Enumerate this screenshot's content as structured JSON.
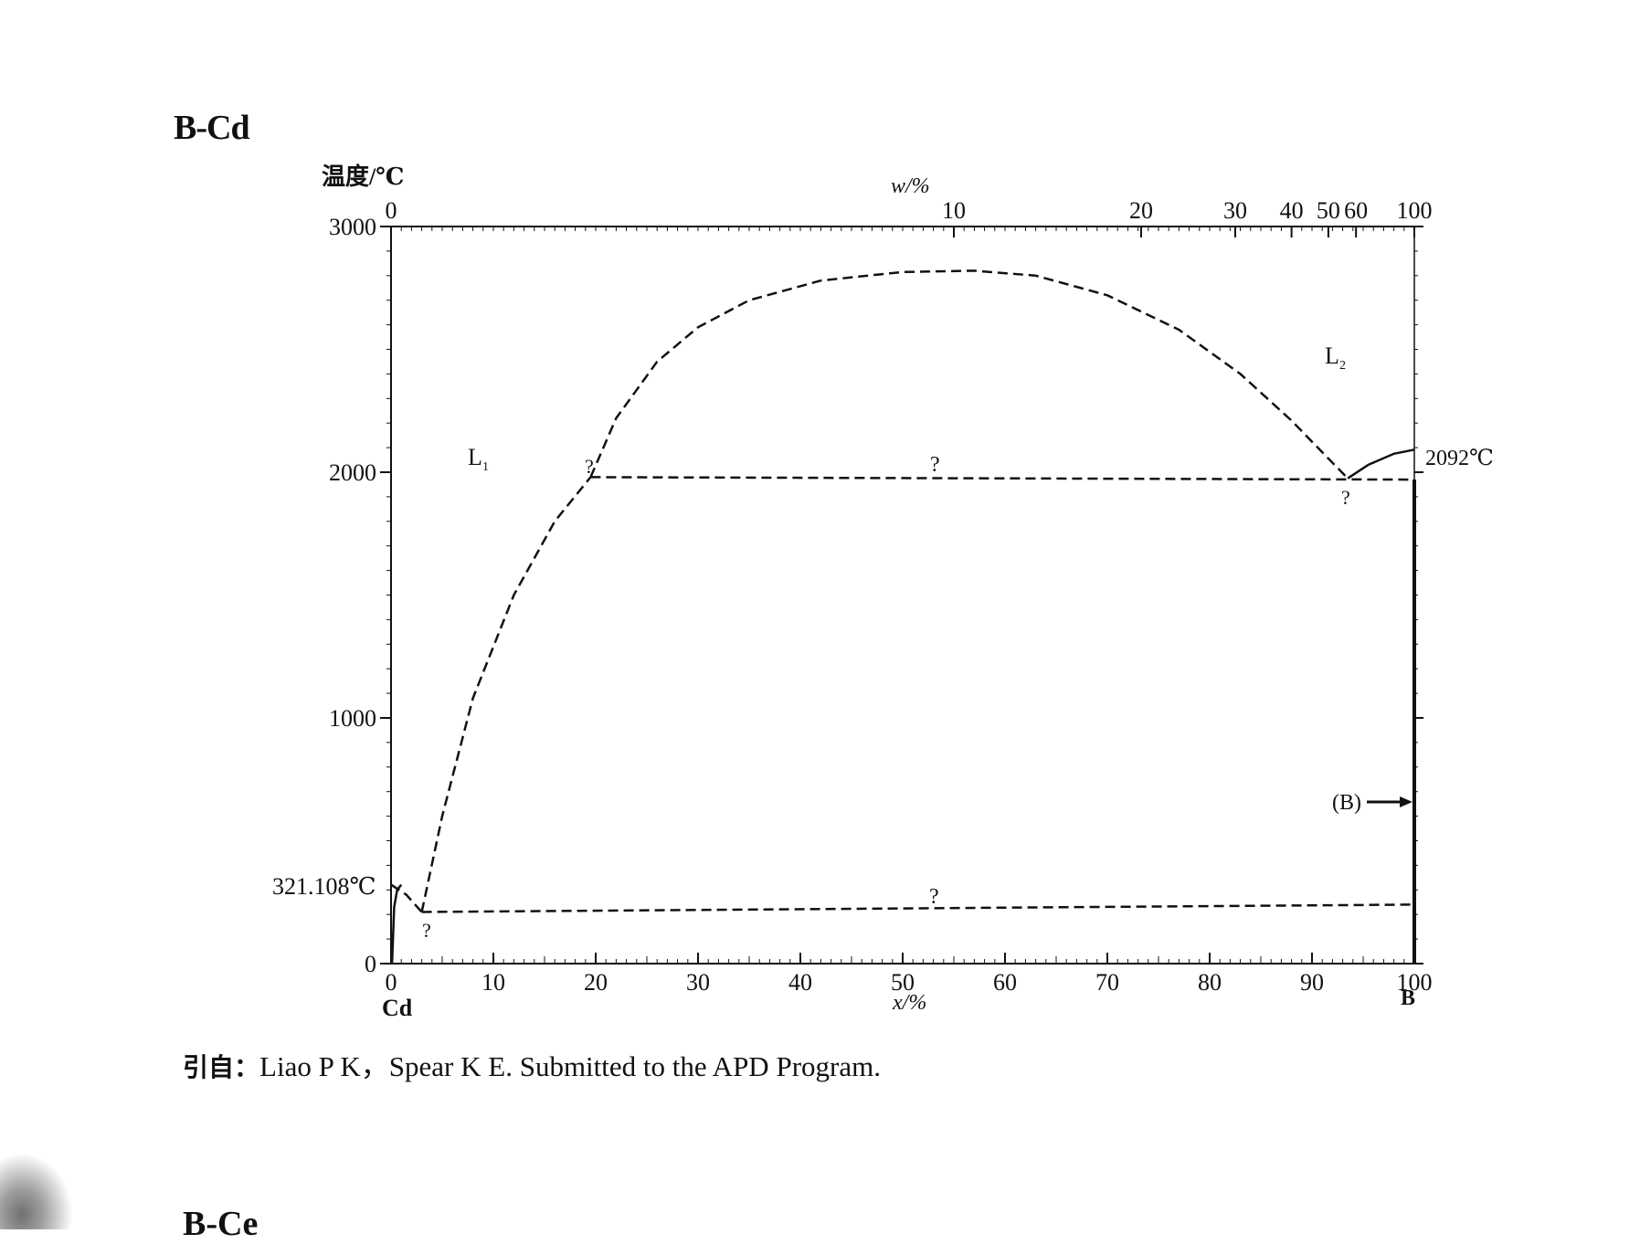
{
  "page": {
    "title": "B-Cd",
    "citation_lead": "引自：",
    "citation_text": "Liao P K，Spear K E. Submitted to the APD Program.",
    "next_title": "B-Ce"
  },
  "chart_data": {
    "type": "line",
    "title": "B-Cd",
    "ylabel": "温度/℃",
    "xlabel": "x/%",
    "x2label": "w/%",
    "xlim": [
      0,
      100
    ],
    "ylim": [
      0,
      3000
    ],
    "y_ticks": [
      "0",
      "1000",
      "2000",
      "3000"
    ],
    "x_ticks": [
      "0",
      "10",
      "20",
      "30",
      "40",
      "50",
      "60",
      "70",
      "80",
      "90",
      "100"
    ],
    "w_ticks": [
      {
        "label": "0",
        "x": 0
      },
      {
        "label": "10",
        "x": 55
      },
      {
        "label": "20",
        "x": 73.3
      },
      {
        "label": "30",
        "x": 82.5
      },
      {
        "label": "40",
        "x": 88
      },
      {
        "label": "50",
        "x": 91.6
      },
      {
        "label": "60",
        "x": 94.3
      },
      {
        "label": "100",
        "x": 100
      }
    ],
    "end_labels": {
      "left": "Cd",
      "right": "B"
    },
    "annotations": {
      "cd_melting": "321.108℃",
      "b_melting": "2092℃",
      "phase_L1": "L",
      "phase_L1_sub": "1",
      "phase_L2": "L",
      "phase_L2_sub": "2",
      "solid_B": "(B)",
      "question": "?"
    },
    "series": [
      {
        "style": "dashed",
        "points": [
          [
            0,
            321.108
          ],
          [
            1.5,
            280
          ],
          [
            3,
            210
          ]
        ]
      },
      {
        "style": "dashed",
        "points": [
          [
            3,
            210
          ],
          [
            5,
            600
          ],
          [
            8,
            1080
          ],
          [
            12,
            1500
          ],
          [
            16,
            1800
          ],
          [
            19.5,
            1980
          ]
        ]
      },
      {
        "style": "dashed",
        "points": [
          [
            19.5,
            1980
          ],
          [
            22,
            2220
          ],
          [
            26,
            2450
          ],
          [
            30,
            2590
          ],
          [
            35,
            2700
          ],
          [
            42,
            2780
          ],
          [
            50,
            2815
          ],
          [
            57,
            2820
          ],
          [
            63,
            2800
          ],
          [
            70,
            2720
          ],
          [
            77,
            2580
          ],
          [
            83,
            2400
          ],
          [
            88,
            2210
          ],
          [
            91.5,
            2060
          ],
          [
            93.5,
            1975
          ]
        ]
      },
      {
        "style": "solid",
        "points": [
          [
            93.5,
            1975
          ],
          [
            95.5,
            2030
          ],
          [
            98,
            2075
          ],
          [
            100,
            2092
          ]
        ]
      },
      {
        "style": "dashed",
        "points": [
          [
            19.5,
            1980
          ],
          [
            100,
            1970
          ]
        ]
      },
      {
        "style": "dashed",
        "points": [
          [
            3,
            210
          ],
          [
            100,
            240
          ]
        ]
      },
      {
        "style": "solid",
        "points": [
          [
            0.1,
            0
          ],
          [
            0.3,
            230
          ],
          [
            0.6,
            300
          ],
          [
            1,
            321.108
          ]
        ]
      },
      {
        "style": "solid",
        "points": [
          [
            100,
            0
          ],
          [
            100,
            1970
          ]
        ]
      }
    ]
  }
}
